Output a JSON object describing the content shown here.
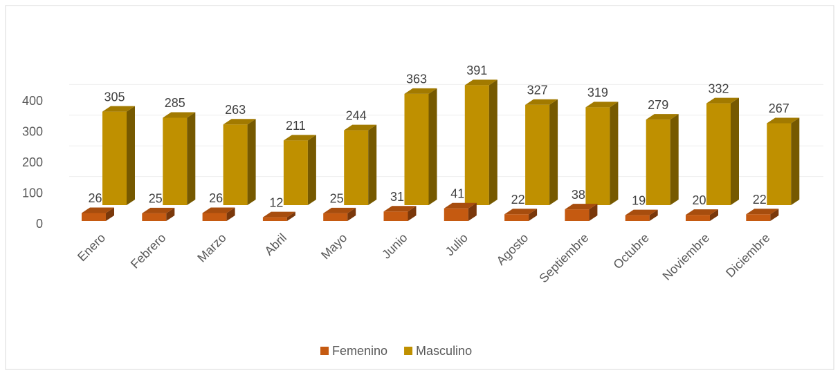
{
  "chart_data": {
    "type": "bar3d",
    "categories": [
      "Enero",
      "Febrero",
      "Marzo",
      "Abril",
      "Mayo",
      "Junio",
      "Julio",
      "Agosto",
      "Septiembre",
      "Octubre",
      "Noviembre",
      "Diciembre"
    ],
    "series": [
      {
        "name": "Femenino",
        "color": "#c55a11",
        "values": [
          26,
          25,
          26,
          12,
          25,
          31,
          41,
          22,
          38,
          19,
          20,
          22
        ]
      },
      {
        "name": "Masculino",
        "color": "#bf9000",
        "values": [
          305,
          285,
          263,
          211,
          244,
          363,
          391,
          327,
          319,
          279,
          332,
          267
        ]
      }
    ],
    "ylim": [
      0,
      500
    ],
    "yticks": [
      0,
      100,
      200,
      300,
      400
    ],
    "grid": true,
    "legend": "bottom"
  }
}
